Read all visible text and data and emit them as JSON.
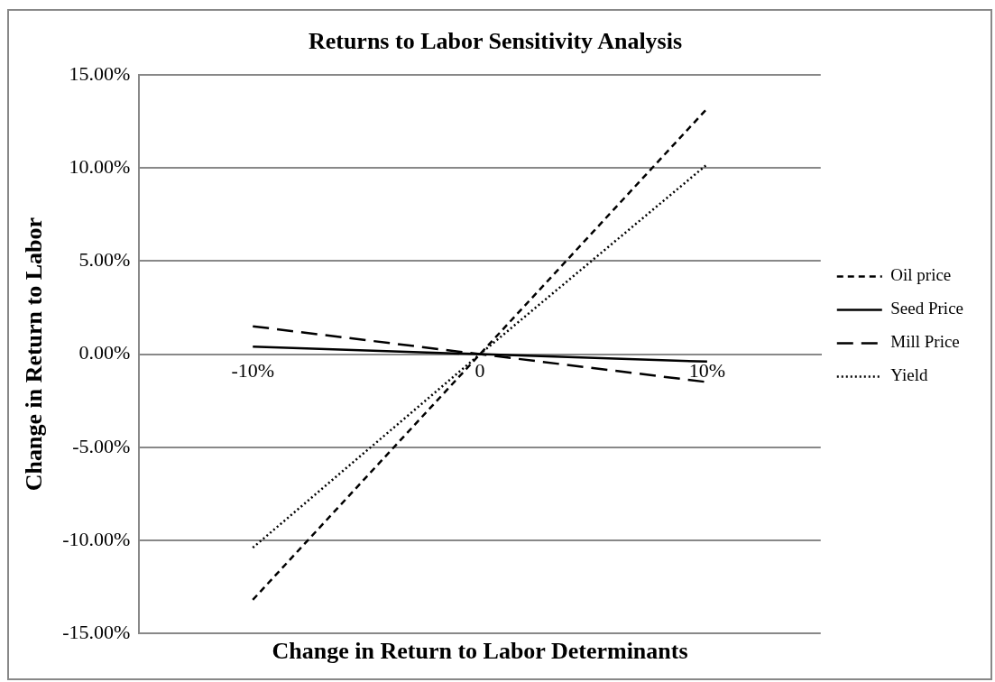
{
  "chart_data": {
    "type": "line",
    "title": "Returns to Labor Sensitivity Analysis",
    "xlabel": "Change in Return to Labor Determinants",
    "ylabel": "Change in Return to Labor",
    "categories": [
      "-10%",
      "0",
      "10%"
    ],
    "series": [
      {
        "name": "Oil price",
        "color": "#000000",
        "line_style": "dashed",
        "values": [
          -13.2,
          0,
          13.2
        ]
      },
      {
        "name": "Seed Price",
        "color": "#000000",
        "line_style": "solid",
        "values": [
          0.4,
          0,
          -0.4
        ]
      },
      {
        "name": "Mill Price",
        "color": "#000000",
        "line_style": "dashed",
        "values": [
          1.5,
          0,
          -1.5
        ]
      },
      {
        "name": "Yield",
        "color": "#000000",
        "line_style": "dotted",
        "values": [
          -10.4,
          0,
          10.2
        ]
      }
    ],
    "ylim": [
      -15,
      15
    ],
    "yticks": [
      {
        "value": -15,
        "label": "-15.00%"
      },
      {
        "value": -10,
        "label": "-10.00%"
      },
      {
        "value": -5,
        "label": "-5.00%"
      },
      {
        "value": 0,
        "label": "0.00%"
      },
      {
        "value": 5,
        "label": "5.00%"
      },
      {
        "value": 10,
        "label": "10.00%"
      },
      {
        "value": 15,
        "label": "15.00%"
      }
    ],
    "grid": "y",
    "legend": "right",
    "marker": "none"
  }
}
